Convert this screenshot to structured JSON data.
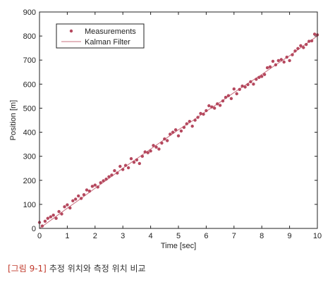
{
  "caption": {
    "tag": "[그림 9-1]",
    "text": "추정 위치와 측정 위치 비교"
  },
  "colors": {
    "marker": "#b5485e",
    "line": "#c9707f",
    "axis": "#222222"
  },
  "chart_data": {
    "type": "scatter",
    "title": "",
    "xlabel": "Time [sec]",
    "ylabel": "Position [m]",
    "xlim": [
      0,
      10
    ],
    "ylim": [
      0,
      900
    ],
    "xticks": [
      0,
      1,
      2,
      3,
      4,
      5,
      6,
      7,
      8,
      9,
      10
    ],
    "yticks": [
      0,
      100,
      200,
      300,
      400,
      500,
      600,
      700,
      800,
      900
    ],
    "grid": false,
    "legend_position": "top-left",
    "legend": [
      "Measurements",
      "Kalman Filter"
    ],
    "series": [
      {
        "name": "Measurements",
        "style": "markers",
        "x": [
          0,
          0.1,
          0.2,
          0.3,
          0.4,
          0.5,
          0.6,
          0.7,
          0.8,
          0.9,
          1.0,
          1.1,
          1.2,
          1.3,
          1.4,
          1.5,
          1.6,
          1.7,
          1.8,
          1.9,
          2.0,
          2.1,
          2.2,
          2.3,
          2.4,
          2.5,
          2.6,
          2.7,
          2.8,
          2.9,
          3.0,
          3.1,
          3.2,
          3.3,
          3.4,
          3.5,
          3.6,
          3.7,
          3.8,
          3.9,
          4.0,
          4.1,
          4.2,
          4.3,
          4.4,
          4.5,
          4.6,
          4.7,
          4.8,
          4.9,
          5.0,
          5.1,
          5.2,
          5.3,
          5.4,
          5.5,
          5.6,
          5.7,
          5.8,
          5.9,
          6.0,
          6.1,
          6.2,
          6.3,
          6.4,
          6.5,
          6.6,
          6.7,
          6.8,
          6.9,
          7.0,
          7.1,
          7.2,
          7.3,
          7.4,
          7.5,
          7.6,
          7.7,
          7.8,
          7.9,
          8.0,
          8.1,
          8.2,
          8.3,
          8.4,
          8.5,
          8.6,
          8.7,
          8.8,
          8.9,
          9.0,
          9.1,
          9.2,
          9.3,
          9.4,
          9.5,
          9.6,
          9.7,
          9.8,
          9.9,
          10.0
        ],
        "y": [
          25,
          10,
          30,
          42,
          48,
          55,
          42,
          70,
          60,
          90,
          98,
          85,
          115,
          122,
          135,
          125,
          140,
          160,
          155,
          175,
          180,
          172,
          190,
          198,
          205,
          215,
          222,
          240,
          230,
          258,
          245,
          262,
          252,
          290,
          275,
          285,
          270,
          300,
          318,
          315,
          322,
          345,
          338,
          330,
          355,
          372,
          365,
          392,
          400,
          410,
          385,
          405,
          420,
          435,
          445,
          425,
          450,
          462,
          478,
          475,
          490,
          510,
          505,
          500,
          518,
          512,
          530,
          545,
          552,
          540,
          580,
          560,
          578,
          592,
          588,
          598,
          610,
          600,
          620,
          628,
          632,
          640,
          668,
          672,
          695,
          680,
          698,
          702,
          692,
          712,
          698,
          722,
          738,
          748,
          760,
          752,
          765,
          778,
          780,
          808,
          805
        ]
      },
      {
        "name": "Kalman Filter",
        "style": "line",
        "x": [
          0,
          0.5,
          1,
          1.5,
          2,
          2.5,
          3,
          3.5,
          4,
          4.5,
          5,
          5.5,
          6,
          6.5,
          7,
          7.5,
          8,
          8.5,
          9,
          9.5,
          10
        ],
        "y": [
          0,
          42,
          84,
          125,
          167,
          208,
          250,
          290,
          330,
          370,
          410,
          447,
          487,
          525,
          565,
          603,
          640,
          680,
          718,
          760,
          800
        ]
      }
    ]
  }
}
